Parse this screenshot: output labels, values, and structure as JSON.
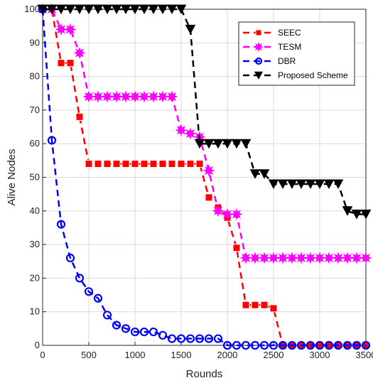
{
  "chart_data": {
    "type": "line",
    "xlabel": "Rounds",
    "ylabel": "Alive Nodes",
    "xlim": [
      0,
      3500
    ],
    "ylim": [
      0,
      100
    ],
    "xticks": [
      0,
      500,
      1000,
      1500,
      2000,
      2500,
      3000,
      3500
    ],
    "yticks": [
      0,
      10,
      20,
      30,
      40,
      50,
      60,
      70,
      80,
      90,
      100
    ],
    "grid": true,
    "legend_position": "top-right",
    "series": [
      {
        "name": "SEEC",
        "color": "#ff0000",
        "marker": "square",
        "x": [
          0,
          100,
          200,
          300,
          400,
          500,
          600,
          700,
          800,
          900,
          1000,
          1100,
          1200,
          1300,
          1400,
          1500,
          1600,
          1700,
          1800,
          1900,
          2000,
          2100,
          2200,
          2300,
          2400,
          2500,
          2600,
          2700,
          2800,
          2900,
          3000,
          3100,
          3200,
          3300,
          3400,
          3500
        ],
        "y": [
          100,
          100,
          84,
          84,
          68,
          54,
          54,
          54,
          54,
          54,
          54,
          54,
          54,
          54,
          54,
          54,
          54,
          54,
          44,
          41,
          38,
          29,
          12,
          12,
          12,
          11,
          0,
          0,
          0,
          0,
          0,
          0,
          0,
          0,
          0,
          0
        ]
      },
      {
        "name": "TESM",
        "color": "#ff00ff",
        "marker": "star",
        "x": [
          0,
          100,
          200,
          300,
          400,
          500,
          600,
          700,
          800,
          900,
          1000,
          1100,
          1200,
          1300,
          1400,
          1500,
          1600,
          1700,
          1800,
          1900,
          2000,
          2100,
          2200,
          2300,
          2400,
          2500,
          2600,
          2700,
          2800,
          2900,
          3000,
          3100,
          3200,
          3300,
          3400,
          3500
        ],
        "y": [
          100,
          100,
          94,
          94,
          87,
          74,
          74,
          74,
          74,
          74,
          74,
          74,
          74,
          74,
          74,
          64,
          63,
          62,
          52,
          40,
          39,
          39,
          26,
          26,
          26,
          26,
          26,
          26,
          26,
          26,
          26,
          26,
          26,
          26,
          26,
          26
        ]
      },
      {
        "name": "DBR",
        "color": "#0000ff",
        "marker": "circle",
        "x": [
          0,
          100,
          200,
          300,
          400,
          500,
          600,
          700,
          800,
          900,
          1000,
          1100,
          1200,
          1300,
          1400,
          1500,
          1600,
          1700,
          1800,
          1900,
          2000,
          2100,
          2200,
          2300,
          2400,
          2500,
          2600,
          2700,
          2800,
          2900,
          3000,
          3100,
          3200,
          3300,
          3400,
          3500
        ],
        "y": [
          100,
          61,
          36,
          26,
          20,
          16,
          14,
          9,
          6,
          5,
          4,
          4,
          4,
          3,
          2,
          2,
          2,
          2,
          2,
          2,
          0,
          0,
          0,
          0,
          0,
          0,
          0,
          0,
          0,
          0,
          0,
          0,
          0,
          0,
          0,
          0
        ]
      },
      {
        "name": "Proposed Scheme",
        "color": "#000000",
        "marker": "triangle-down",
        "x": [
          0,
          100,
          200,
          300,
          400,
          500,
          600,
          700,
          800,
          900,
          1000,
          1100,
          1200,
          1300,
          1400,
          1500,
          1600,
          1700,
          1800,
          1900,
          2000,
          2100,
          2200,
          2300,
          2400,
          2500,
          2600,
          2700,
          2800,
          2900,
          3000,
          3100,
          3200,
          3300,
          3400,
          3500
        ],
        "y": [
          100,
          100,
          100,
          100,
          100,
          100,
          100,
          100,
          100,
          100,
          100,
          100,
          100,
          100,
          100,
          100,
          94,
          60,
          60,
          60,
          60,
          60,
          60,
          51,
          51,
          48,
          48,
          48,
          48,
          48,
          48,
          48,
          48,
          40,
          39,
          39
        ]
      }
    ]
  }
}
